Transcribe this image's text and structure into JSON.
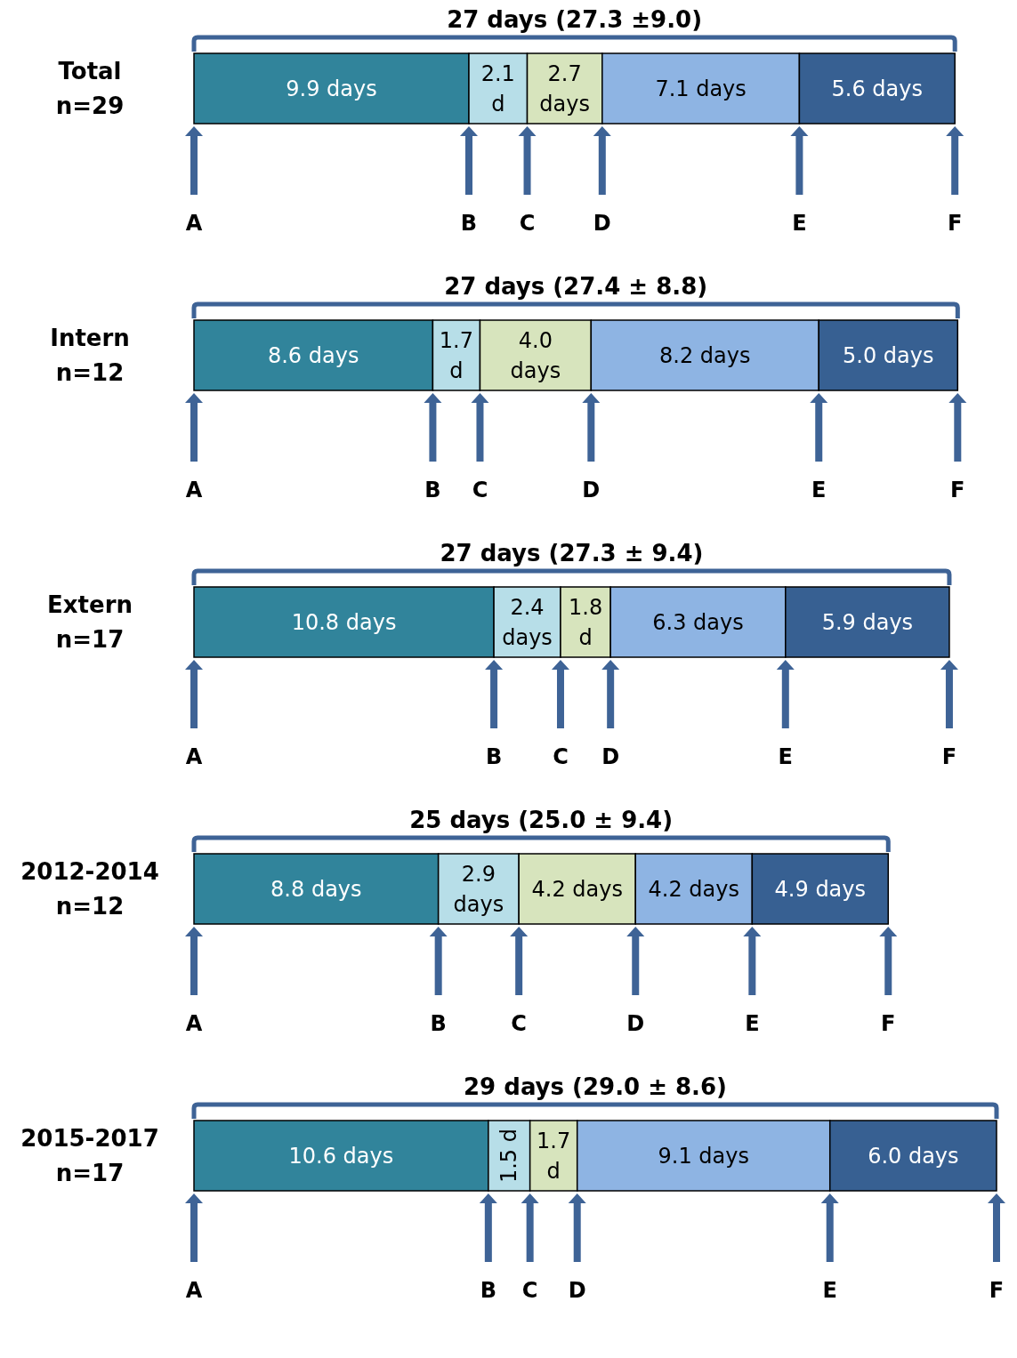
{
  "chart_data": [
    {
      "type": "bar",
      "orientation": "horizontal",
      "stacked": true,
      "title": "27 days (27.3 ±9.0)",
      "categories": [
        "Total\nn=29"
      ],
      "tick_labels": "y",
      "series": [
        {
          "color": "#31849b",
          "values": [
            9.9
          ],
          "value_labels": [
            "9.9 days"
          ]
        },
        {
          "color": "#b7dee8",
          "values": [
            2.1
          ],
          "value_labels": [
            "2.1\nd"
          ]
        },
        {
          "color": "#d7e4bd",
          "values": [
            2.7
          ],
          "value_labels": [
            "2.7\ndays"
          ]
        },
        {
          "color": "#8eb4e3",
          "values": [
            7.1
          ],
          "value_labels": [
            "7.1 days"
          ]
        },
        {
          "color": "#376092",
          "values": [
            5.6
          ],
          "value_labels": [
            "5.6 days"
          ]
        }
      ],
      "annotations": [
        "A",
        "B",
        "C",
        "D",
        "E",
        "F"
      ]
    },
    {
      "type": "bar",
      "orientation": "horizontal",
      "stacked": true,
      "title": "27 days (27.4 ± 8.8)",
      "categories": [
        "Intern\nn=12"
      ],
      "tick_labels": "y",
      "series": [
        {
          "color": "#31849b",
          "values": [
            8.6
          ],
          "value_labels": [
            "8.6 days"
          ]
        },
        {
          "color": "#b7dee8",
          "values": [
            1.7
          ],
          "value_labels": [
            "1.7\nd"
          ]
        },
        {
          "color": "#d7e4bd",
          "values": [
            4.0
          ],
          "value_labels": [
            "4.0\ndays"
          ]
        },
        {
          "color": "#8eb4e3",
          "values": [
            8.2
          ],
          "value_labels": [
            "8.2 days"
          ]
        },
        {
          "color": "#376092",
          "values": [
            5.0
          ],
          "value_labels": [
            "5.0 days"
          ]
        }
      ],
      "annotations": [
        "A",
        "B",
        "C",
        "D",
        "E",
        "F"
      ]
    },
    {
      "type": "bar",
      "orientation": "horizontal",
      "stacked": true,
      "title": "27 days (27.3 ± 9.4)",
      "categories": [
        "Extern\nn=17"
      ],
      "tick_labels": "y",
      "series": [
        {
          "color": "#31849b",
          "values": [
            10.8
          ],
          "value_labels": [
            "10.8 days"
          ]
        },
        {
          "color": "#b7dee8",
          "values": [
            2.4
          ],
          "value_labels": [
            "2.4\ndays"
          ]
        },
        {
          "color": "#d7e4bd",
          "values": [
            1.8
          ],
          "value_labels": [
            "1.8\nd"
          ]
        },
        {
          "color": "#8eb4e3",
          "values": [
            6.3
          ],
          "value_labels": [
            "6.3 days"
          ]
        },
        {
          "color": "#376092",
          "values": [
            5.9
          ],
          "value_labels": [
            "5.9 days"
          ]
        }
      ],
      "annotations": [
        "A",
        "B",
        "C",
        "D",
        "E",
        "F"
      ]
    },
    {
      "type": "bar",
      "orientation": "horizontal",
      "stacked": true,
      "title": "25 days (25.0 ± 9.4)",
      "categories": [
        "2012-2014\nn=12"
      ],
      "tick_labels": "y",
      "series": [
        {
          "color": "#31849b",
          "values": [
            8.8
          ],
          "value_labels": [
            "8.8 days"
          ]
        },
        {
          "color": "#b7dee8",
          "values": [
            2.9
          ],
          "value_labels": [
            "2.9\ndays"
          ]
        },
        {
          "color": "#d7e4bd",
          "values": [
            4.2
          ],
          "value_labels": [
            "4.2 days"
          ]
        },
        {
          "color": "#8eb4e3",
          "values": [
            4.2
          ],
          "value_labels": [
            "4.2 days"
          ]
        },
        {
          "color": "#376092",
          "values": [
            4.9
          ],
          "value_labels": [
            "4.9 days"
          ]
        }
      ],
      "annotations": [
        "A",
        "B",
        "C",
        "D",
        "E",
        "F"
      ]
    },
    {
      "type": "bar",
      "orientation": "horizontal",
      "stacked": true,
      "title": "29 days (29.0 ± 8.6)",
      "categories": [
        "2015-2017\nn=17"
      ],
      "tick_labels": "y",
      "series": [
        {
          "color": "#31849b",
          "values": [
            10.6
          ],
          "value_labels": [
            "10.6 days"
          ]
        },
        {
          "color": "#b7dee8",
          "values": [
            1.5
          ],
          "value_labels": [
            "1.5 d"
          ]
        },
        {
          "color": "#d7e4bd",
          "values": [
            1.7
          ],
          "value_labels": [
            "1.7\nd"
          ]
        },
        {
          "color": "#8eb4e3",
          "values": [
            9.1
          ],
          "value_labels": [
            "9.1 days"
          ]
        },
        {
          "color": "#376092",
          "values": [
            6.0
          ],
          "value_labels": [
            "6.0 days"
          ]
        }
      ],
      "annotations": [
        "A",
        "B",
        "C",
        "D",
        "E",
        "F"
      ]
    }
  ]
}
